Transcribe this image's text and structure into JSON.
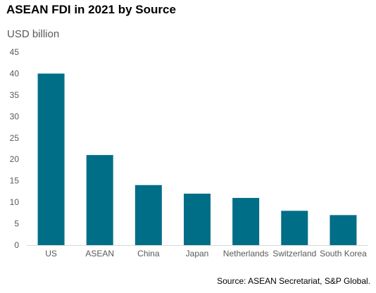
{
  "chart_data": {
    "type": "bar",
    "title": "ASEAN FDI in 2021 by Source",
    "unit_label": "USD billion",
    "source": "Source: ASEAN Secretariat, S&P Global.",
    "categories": [
      "US",
      "ASEAN",
      "China",
      "Japan",
      "Netherlands",
      "Switzerland",
      "South Korea"
    ],
    "values": [
      40,
      21,
      14,
      12,
      11,
      8,
      7
    ],
    "ylim": [
      0,
      45
    ],
    "yticks": [
      0,
      5,
      10,
      15,
      20,
      25,
      30,
      35,
      40,
      45
    ],
    "xlabel": "",
    "ylabel": "",
    "grid": false,
    "legend": "none",
    "bar_color": "#006E87"
  }
}
